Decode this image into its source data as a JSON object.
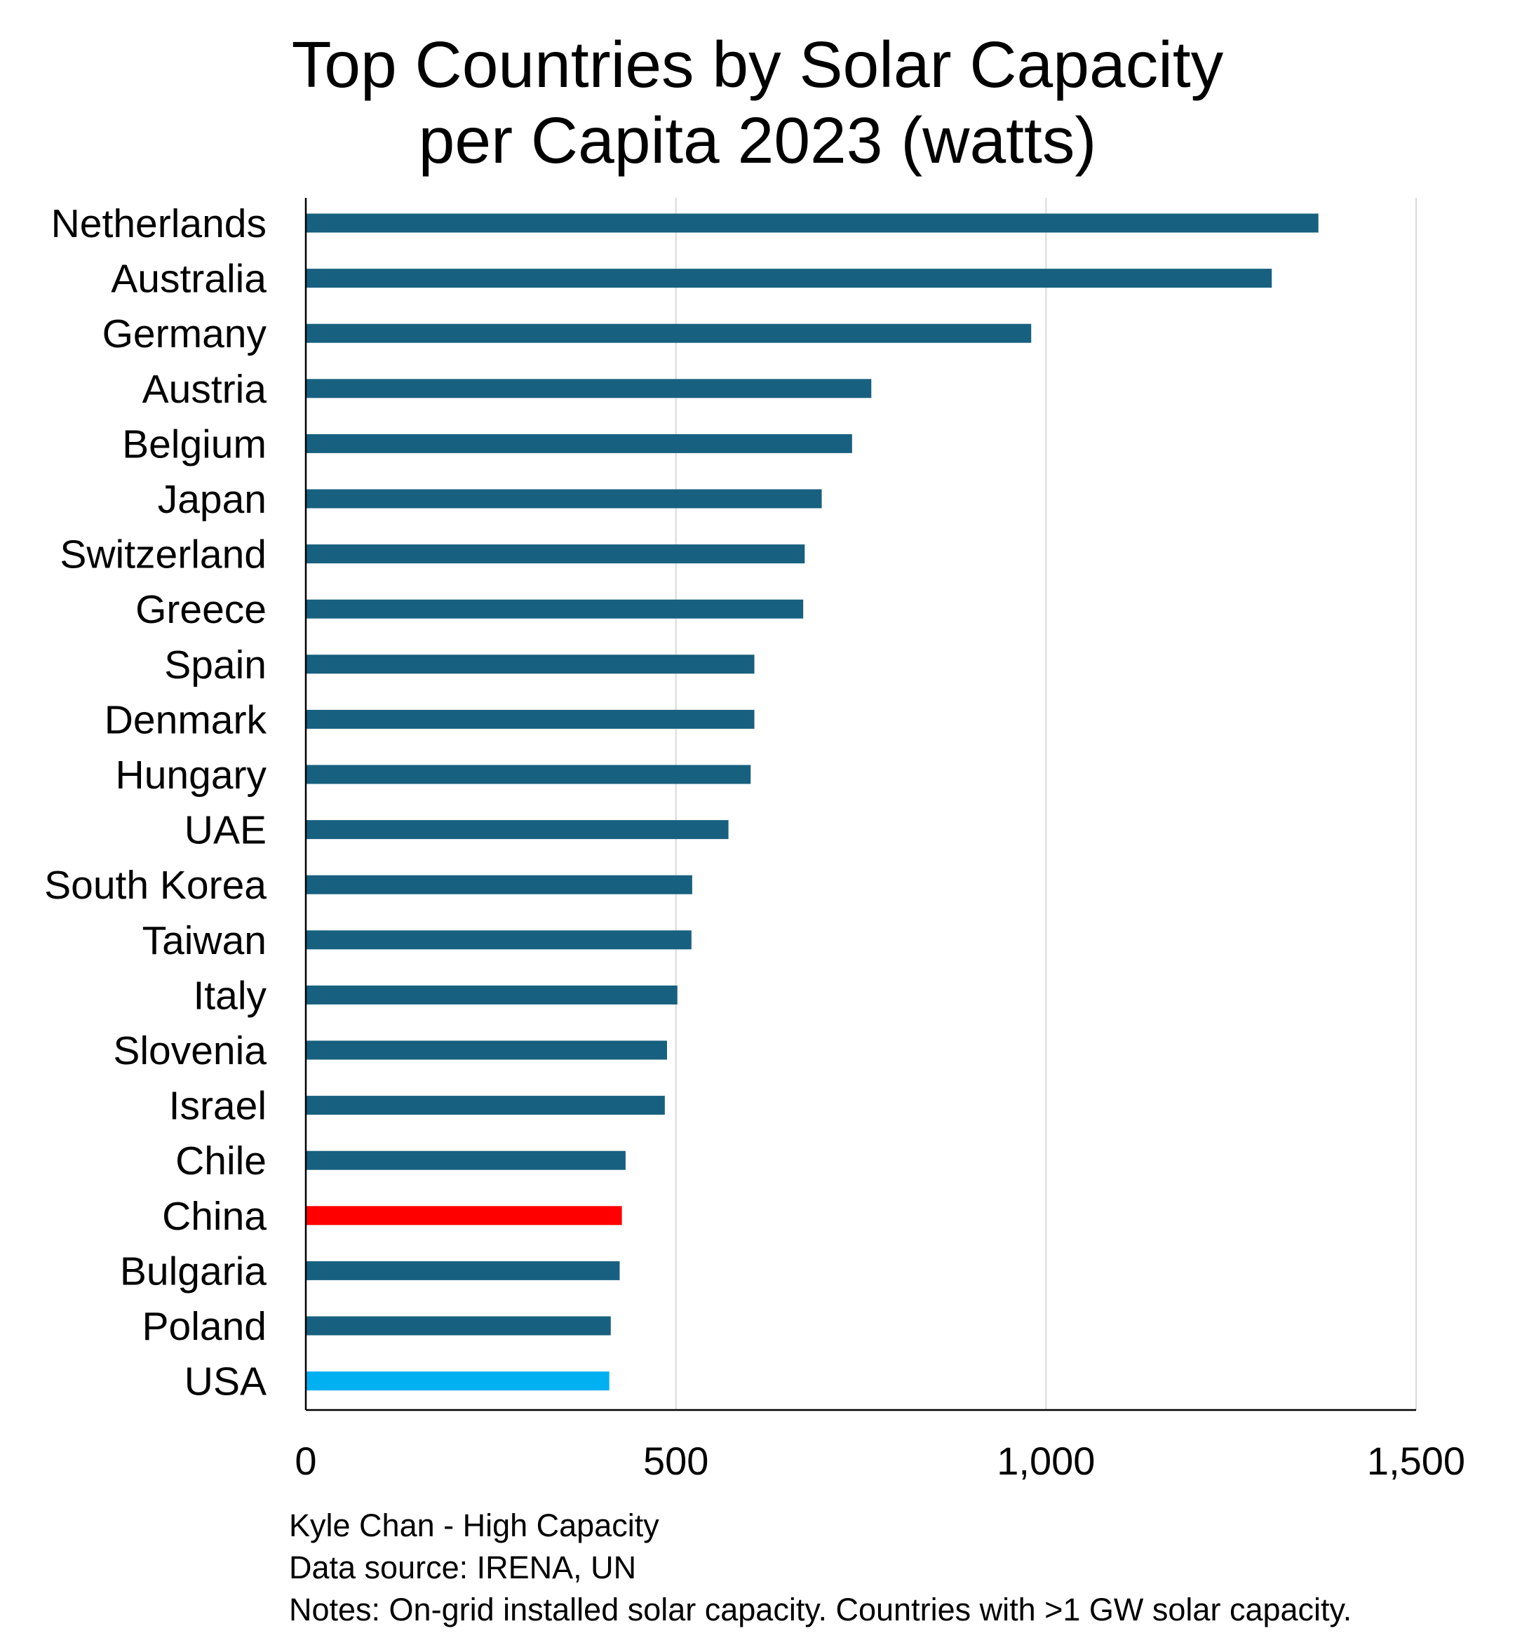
{
  "chart_data": {
    "type": "bar",
    "orientation": "horizontal",
    "title_lines": [
      "Top Countries by Solar Capacity",
      "per Capita 2023 (watts)"
    ],
    "categories": [
      "Netherlands",
      "Australia",
      "Germany",
      "Austria",
      "Belgium",
      "Japan",
      "Switzerland",
      "Greece",
      "Spain",
      "Denmark",
      "Hungary",
      "UAE",
      "South Korea",
      "Taiwan",
      "Italy",
      "Slovenia",
      "Israel",
      "Chile",
      "China",
      "Bulgaria",
      "Poland",
      "USA"
    ],
    "values": [
      1368,
      1305,
      980,
      764,
      738,
      697,
      674,
      672,
      606,
      606,
      601,
      571,
      522,
      521,
      502,
      488,
      485,
      432,
      427,
      424,
      412,
      410
    ],
    "bar_colors": [
      "#17607f",
      "#17607f",
      "#17607f",
      "#17607f",
      "#17607f",
      "#17607f",
      "#17607f",
      "#17607f",
      "#17607f",
      "#17607f",
      "#17607f",
      "#17607f",
      "#17607f",
      "#17607f",
      "#17607f",
      "#17607f",
      "#17607f",
      "#17607f",
      "#ff0000",
      "#17607f",
      "#17607f",
      "#00b0f0"
    ],
    "xlim": [
      0,
      1500
    ],
    "xticks": [
      0,
      500,
      1000,
      1500
    ],
    "xtick_labels": [
      "0",
      "500",
      "1,000",
      "1,500"
    ],
    "grid": "vertical",
    "legend": "none"
  },
  "footnotes": {
    "credit": "Kyle Chan - High Capacity",
    "source": "Data source: IRENA, UN",
    "notes": "Notes: On-grid installed solar capacity. Countries with >1 GW solar capacity."
  }
}
